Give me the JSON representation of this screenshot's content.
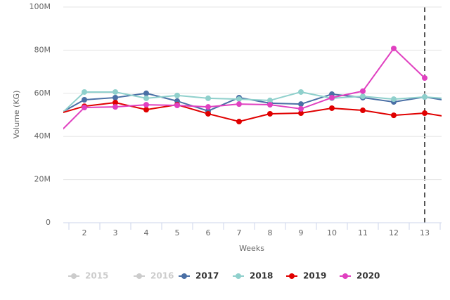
{
  "chart_data": {
    "type": "line",
    "ylabel": "Volume (KG)",
    "xlabel": "Weeks",
    "categories": [
      null,
      "2",
      "3",
      "4",
      "5",
      "6",
      "7",
      "8",
      "9",
      "10",
      "11",
      "12",
      "13",
      null
    ],
    "ylim": [
      0,
      100
    ],
    "yticks": [
      0,
      {
        "value": 20,
        "label": "20M"
      },
      {
        "value": 40,
        "label": "40M"
      },
      {
        "value": 60,
        "label": "60M"
      },
      {
        "value": 80,
        "label": "80M"
      },
      {
        "value": 100,
        "label": "100M"
      }
    ],
    "grid": true,
    "series": [
      {
        "name": "2015",
        "color": "#cccccc",
        "visible": false,
        "values": [
          null,
          null,
          null,
          null,
          null,
          null,
          null,
          null,
          null,
          null,
          null,
          null,
          null,
          null
        ]
      },
      {
        "name": "2016",
        "color": "#cccccc",
        "visible": false,
        "values": [
          null,
          null,
          null,
          null,
          null,
          null,
          null,
          null,
          null,
          null,
          null,
          null,
          null,
          null
        ]
      },
      {
        "name": "2017",
        "color": "#4a6fa5",
        "visible": true,
        "values": [
          49,
          57,
          58,
          60,
          56.4,
          51.8,
          58,
          55.4,
          55,
          59.6,
          58,
          56,
          58.3,
          56
        ]
      },
      {
        "name": "2018",
        "color": "#8fd0cc",
        "visible": true,
        "values": [
          47,
          60.6,
          60.6,
          57.7,
          59,
          57.7,
          57.3,
          56.7,
          60.6,
          57.7,
          58.6,
          57.3,
          58.3,
          57.3
        ]
      },
      {
        "name": "2019",
        "color": "#e00000",
        "visible": true,
        "values": [
          49.8,
          54,
          55.7,
          52.4,
          54.7,
          50.5,
          46.9,
          50.5,
          50.8,
          53.1,
          52.1,
          49.8,
          50.8,
          48.5
        ]
      },
      {
        "name": "2020",
        "color": "#e040c0",
        "visible": true,
        "values": [
          39,
          53.4,
          53.7,
          54.7,
          54.4,
          53.7,
          55,
          54.7,
          52.8,
          58,
          61,
          80.8,
          67.1,
          null
        ]
      }
    ]
  }
}
